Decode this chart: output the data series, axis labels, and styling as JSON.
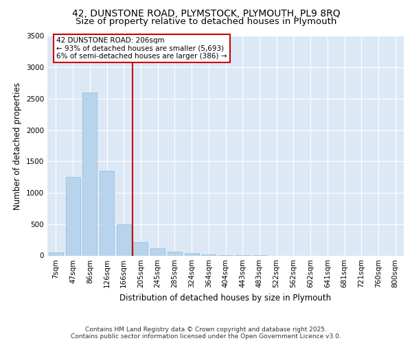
{
  "title_line1": "42, DUNSTONE ROAD, PLYMSTOCK, PLYMOUTH, PL9 8RQ",
  "title_line2": "Size of property relative to detached houses in Plymouth",
  "xlabel": "Distribution of detached houses by size in Plymouth",
  "ylabel": "Number of detached properties",
  "categories": [
    "7sqm",
    "47sqm",
    "86sqm",
    "126sqm",
    "166sqm",
    "205sqm",
    "245sqm",
    "285sqm",
    "324sqm",
    "364sqm",
    "404sqm",
    "443sqm",
    "483sqm",
    "522sqm",
    "562sqm",
    "602sqm",
    "641sqm",
    "681sqm",
    "721sqm",
    "760sqm",
    "800sqm"
  ],
  "values": [
    50,
    1250,
    2600,
    1350,
    500,
    215,
    120,
    55,
    40,
    20,
    8,
    4,
    2,
    0,
    0,
    0,
    0,
    0,
    0,
    0,
    0
  ],
  "bar_color": "#b8d4ec",
  "bar_edge_color": "#90b8d8",
  "vline_color": "#cc0000",
  "vline_idx": 5,
  "annotation_title": "42 DUNSTONE ROAD: 206sqm",
  "annotation_line1": "← 93% of detached houses are smaller (5,693)",
  "annotation_line2": "6% of semi-detached houses are larger (386) →",
  "annotation_box_edgecolor": "#cc0000",
  "annotation_box_facecolor": "#ffffff",
  "ylim": [
    0,
    3500
  ],
  "yticks": [
    0,
    500,
    1000,
    1500,
    2000,
    2500,
    3000,
    3500
  ],
  "plot_bg": "#dce8f5",
  "fig_bg": "#ffffff",
  "grid_color": "#ffffff",
  "footer_line1": "Contains HM Land Registry data © Crown copyright and database right 2025.",
  "footer_line2": "Contains public sector information licensed under the Open Government Licence v3.0.",
  "title_fontsize": 10,
  "axis_label_fontsize": 8.5,
  "tick_fontsize": 7.5,
  "annotation_fontsize": 7.5,
  "footer_fontsize": 6.5
}
